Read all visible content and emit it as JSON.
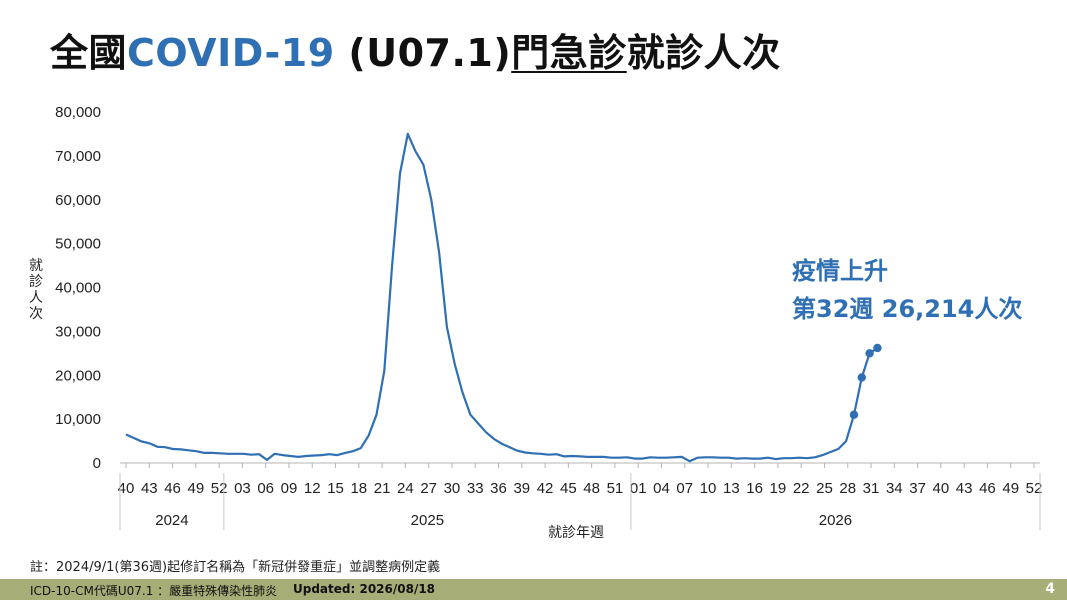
{
  "title": {
    "part1": "全國",
    "part2": "COVID-19",
    "part3": " (U07.1)",
    "part4": "門急診",
    "part5": "就診人次"
  },
  "chart_data": {
    "type": "line",
    "title": "",
    "ylabel": "就診人次",
    "xlabel": "就診年週",
    "ylim": [
      0,
      80000
    ],
    "y_ticks": [
      "0",
      "10,000",
      "20,000",
      "30,000",
      "40,000",
      "50,000",
      "60,000",
      "70,000",
      "80,000"
    ],
    "x_tick_labels": [
      "40",
      "43",
      "46",
      "49",
      "52",
      "03",
      "06",
      "09",
      "12",
      "15",
      "18",
      "21",
      "24",
      "27",
      "30",
      "33",
      "36",
      "39",
      "42",
      "45",
      "48",
      "51",
      "01",
      "04",
      "07",
      "10",
      "13",
      "16",
      "19",
      "22",
      "25",
      "28",
      "31",
      "34",
      "37",
      "40",
      "43",
      "46",
      "49",
      "52"
    ],
    "years": [
      {
        "label": "2024",
        "first_week": 40,
        "last_week": 52
      },
      {
        "label": "2025",
        "first_week": 1,
        "last_week": 52
      },
      {
        "label": "2026",
        "first_week": 1,
        "last_week": 52
      }
    ],
    "series": [
      {
        "name": "",
        "color": "#2f6fb3",
        "points": [
          {
            "year": 2024,
            "week": 40,
            "value": 6500
          },
          {
            "year": 2024,
            "week": 41,
            "value": 5700
          },
          {
            "year": 2024,
            "week": 42,
            "value": 4900
          },
          {
            "year": 2024,
            "week": 43,
            "value": 4500
          },
          {
            "year": 2024,
            "week": 44,
            "value": 3700
          },
          {
            "year": 2024,
            "week": 45,
            "value": 3600
          },
          {
            "year": 2024,
            "week": 46,
            "value": 3200
          },
          {
            "year": 2024,
            "week": 47,
            "value": 3100
          },
          {
            "year": 2024,
            "week": 48,
            "value": 2900
          },
          {
            "year": 2024,
            "week": 49,
            "value": 2700
          },
          {
            "year": 2024,
            "week": 50,
            "value": 2300
          },
          {
            "year": 2024,
            "week": 51,
            "value": 2300
          },
          {
            "year": 2024,
            "week": 52,
            "value": 2200
          },
          {
            "year": 2025,
            "week": 1,
            "value": 2100
          },
          {
            "year": 2025,
            "week": 2,
            "value": 2100
          },
          {
            "year": 2025,
            "week": 3,
            "value": 2100
          },
          {
            "year": 2025,
            "week": 4,
            "value": 1900
          },
          {
            "year": 2025,
            "week": 5,
            "value": 2000
          },
          {
            "year": 2025,
            "week": 6,
            "value": 700
          },
          {
            "year": 2025,
            "week": 7,
            "value": 2100
          },
          {
            "year": 2025,
            "week": 8,
            "value": 1800
          },
          {
            "year": 2025,
            "week": 9,
            "value": 1600
          },
          {
            "year": 2025,
            "week": 10,
            "value": 1400
          },
          {
            "year": 2025,
            "week": 11,
            "value": 1600
          },
          {
            "year": 2025,
            "week": 12,
            "value": 1700
          },
          {
            "year": 2025,
            "week": 13,
            "value": 1800
          },
          {
            "year": 2025,
            "week": 14,
            "value": 2000
          },
          {
            "year": 2025,
            "week": 15,
            "value": 1800
          },
          {
            "year": 2025,
            "week": 16,
            "value": 2300
          },
          {
            "year": 2025,
            "week": 17,
            "value": 2700
          },
          {
            "year": 2025,
            "week": 18,
            "value": 3400
          },
          {
            "year": 2025,
            "week": 19,
            "value": 6300
          },
          {
            "year": 2025,
            "week": 20,
            "value": 11000
          },
          {
            "year": 2025,
            "week": 21,
            "value": 21000
          },
          {
            "year": 2025,
            "week": 22,
            "value": 45000
          },
          {
            "year": 2025,
            "week": 23,
            "value": 66000
          },
          {
            "year": 2025,
            "week": 24,
            "value": 75000
          },
          {
            "year": 2025,
            "week": 25,
            "value": 71000
          },
          {
            "year": 2025,
            "week": 26,
            "value": 68000
          },
          {
            "year": 2025,
            "week": 27,
            "value": 60000
          },
          {
            "year": 2025,
            "week": 28,
            "value": 48000
          },
          {
            "year": 2025,
            "week": 29,
            "value": 31000
          },
          {
            "year": 2025,
            "week": 30,
            "value": 22500
          },
          {
            "year": 2025,
            "week": 31,
            "value": 16000
          },
          {
            "year": 2025,
            "week": 32,
            "value": 11000
          },
          {
            "year": 2025,
            "week": 33,
            "value": 9000
          },
          {
            "year": 2025,
            "week": 34,
            "value": 7000
          },
          {
            "year": 2025,
            "week": 35,
            "value": 5500
          },
          {
            "year": 2025,
            "week": 36,
            "value": 4400
          },
          {
            "year": 2025,
            "week": 37,
            "value": 3600
          },
          {
            "year": 2025,
            "week": 38,
            "value": 2800
          },
          {
            "year": 2025,
            "week": 39,
            "value": 2400
          },
          {
            "year": 2025,
            "week": 40,
            "value": 2200
          },
          {
            "year": 2025,
            "week": 41,
            "value": 2100
          },
          {
            "year": 2025,
            "week": 42,
            "value": 1900
          },
          {
            "year": 2025,
            "week": 43,
            "value": 2000
          },
          {
            "year": 2025,
            "week": 44,
            "value": 1500
          },
          {
            "year": 2025,
            "week": 45,
            "value": 1600
          },
          {
            "year": 2025,
            "week": 46,
            "value": 1500
          },
          {
            "year": 2025,
            "week": 47,
            "value": 1400
          },
          {
            "year": 2025,
            "week": 48,
            "value": 1400
          },
          {
            "year": 2025,
            "week": 49,
            "value": 1400
          },
          {
            "year": 2025,
            "week": 50,
            "value": 1200
          },
          {
            "year": 2025,
            "week": 51,
            "value": 1200
          },
          {
            "year": 2025,
            "week": 52,
            "value": 1300
          },
          {
            "year": 2026,
            "week": 1,
            "value": 1000
          },
          {
            "year": 2026,
            "week": 2,
            "value": 1000
          },
          {
            "year": 2026,
            "week": 3,
            "value": 1300
          },
          {
            "year": 2026,
            "week": 4,
            "value": 1200
          },
          {
            "year": 2026,
            "week": 5,
            "value": 1200
          },
          {
            "year": 2026,
            "week": 6,
            "value": 1300
          },
          {
            "year": 2026,
            "week": 7,
            "value": 1400
          },
          {
            "year": 2026,
            "week": 8,
            "value": 400
          },
          {
            "year": 2026,
            "week": 9,
            "value": 1200
          },
          {
            "year": 2026,
            "week": 10,
            "value": 1300
          },
          {
            "year": 2026,
            "week": 11,
            "value": 1300
          },
          {
            "year": 2026,
            "week": 12,
            "value": 1200
          },
          {
            "year": 2026,
            "week": 13,
            "value": 1200
          },
          {
            "year": 2026,
            "week": 14,
            "value": 1000
          },
          {
            "year": 2026,
            "week": 15,
            "value": 1100
          },
          {
            "year": 2026,
            "week": 16,
            "value": 1000
          },
          {
            "year": 2026,
            "week": 17,
            "value": 1000
          },
          {
            "year": 2026,
            "week": 18,
            "value": 1200
          },
          {
            "year": 2026,
            "week": 19,
            "value": 900
          },
          {
            "year": 2026,
            "week": 20,
            "value": 1100
          },
          {
            "year": 2026,
            "week": 21,
            "value": 1100
          },
          {
            "year": 2026,
            "week": 22,
            "value": 1200
          },
          {
            "year": 2026,
            "week": 23,
            "value": 1100
          },
          {
            "year": 2026,
            "week": 24,
            "value": 1300
          },
          {
            "year": 2026,
            "week": 25,
            "value": 1800
          },
          {
            "year": 2026,
            "week": 26,
            "value": 2500
          },
          {
            "year": 2026,
            "week": 27,
            "value": 3200
          },
          {
            "year": 2026,
            "week": 28,
            "value": 5000
          },
          {
            "year": 2026,
            "week": 29,
            "value": 11000
          },
          {
            "year": 2026,
            "week": 30,
            "value": 19500
          },
          {
            "year": 2026,
            "week": 31,
            "value": 25000
          },
          {
            "year": 2026,
            "week": 32,
            "value": 26214
          }
        ],
        "marker_weeks_2026": [
          29,
          30,
          31,
          32
        ]
      }
    ],
    "annotation": {
      "line1": "疫情上升",
      "line2": "第32週 26,214人次",
      "color": "#2f6fb3"
    },
    "grid": false,
    "legend": "none"
  },
  "note": "註：2024/9/1(第36週)起修訂名稱為「新冠併發重症」並調整病例定義",
  "footer": {
    "left": "ICD-10-CM代碼U07.1 ：嚴重特殊傳染性肺炎",
    "updated": "Updated: 2026/08/18",
    "page": "4"
  }
}
